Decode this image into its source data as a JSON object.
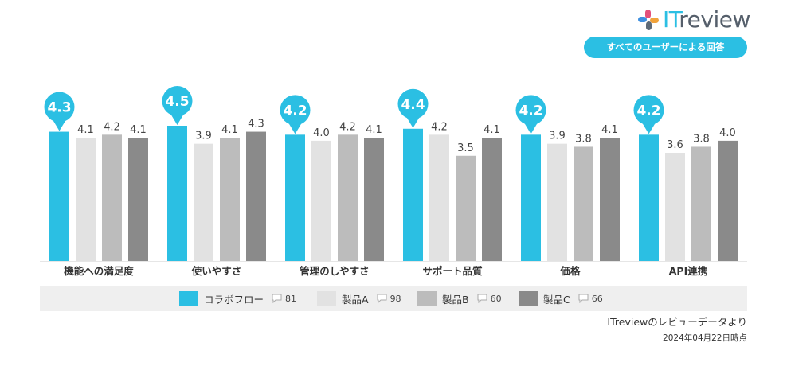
{
  "header": {
    "logo": {
      "part1": "IT",
      "part2": "review"
    },
    "badge": "すべてのユーザーによる回答"
  },
  "colors": {
    "accent": "#2bbfe3",
    "productA": "#e2e2e2",
    "productB": "#bcbcbc",
    "productC": "#8a8a8a"
  },
  "legend": [
    {
      "name": "コラボフロー",
      "count": "81",
      "color": "#2bbfe3"
    },
    {
      "name": "製品A",
      "count": "98",
      "color": "#e2e2e2"
    },
    {
      "name": "製品B",
      "count": "60",
      "color": "#bcbcbc"
    },
    {
      "name": "製品C",
      "count": "66",
      "color": "#8a8a8a"
    }
  ],
  "footer": {
    "source": "ITreviewのレビューデータより",
    "date": "2024年04月22日時点"
  },
  "chart_data": {
    "type": "bar",
    "categories": [
      "機能への満足度",
      "使いやすさ",
      "管理のしやすさ",
      "サポート品質",
      "価格",
      "API連携"
    ],
    "series": [
      {
        "name": "コラボフロー",
        "values": [
          4.3,
          4.5,
          4.2,
          4.4,
          4.2,
          4.2
        ]
      },
      {
        "name": "製品A",
        "values": [
          4.1,
          3.9,
          4.0,
          4.2,
          3.9,
          3.6
        ]
      },
      {
        "name": "製品B",
        "values": [
          4.2,
          4.1,
          4.2,
          3.5,
          3.8,
          3.8
        ]
      },
      {
        "name": "製品C",
        "values": [
          4.1,
          4.3,
          4.1,
          4.1,
          4.1,
          4.0
        ]
      }
    ],
    "data_labels": true,
    "highlighted_series": "コラボフロー",
    "grid": false,
    "legend_position": "bottom"
  }
}
